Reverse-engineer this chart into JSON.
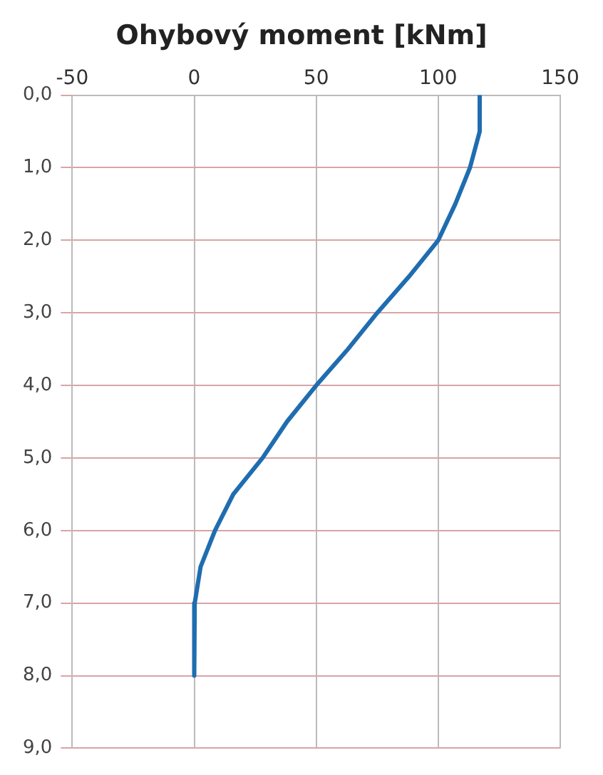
{
  "chart_data": {
    "type": "line",
    "title": "Ohybový moment [kNm]",
    "xlim": [
      -50,
      150
    ],
    "xticks": [
      -50,
      0,
      50,
      100,
      150
    ],
    "ylim": [
      9,
      0
    ],
    "yticks": [
      {
        "value": 0,
        "label": "0,0"
      },
      {
        "value": 1,
        "label": "1,0"
      },
      {
        "value": 2,
        "label": "2,0"
      },
      {
        "value": 3,
        "label": "3,0"
      },
      {
        "value": 4,
        "label": "4,0"
      },
      {
        "value": 5,
        "label": "5,0"
      },
      {
        "value": 6,
        "label": "6,0"
      },
      {
        "value": 7,
        "label": "7,0"
      },
      {
        "value": 8,
        "label": "8,0"
      },
      {
        "value": 9,
        "label": "9,0"
      }
    ],
    "grid": true,
    "legend": false,
    "marker": "none",
    "line_style": "solid",
    "series": [
      {
        "color": "#1f6db0",
        "x": [
          117,
          117,
          113,
          107,
          100,
          88,
          75,
          63,
          50,
          38,
          28,
          16,
          8.5,
          2.6,
          0.2,
          0
        ],
        "values": [
          0,
          0.5,
          1,
          1.5,
          2,
          2.5,
          3,
          3.5,
          4,
          4.5,
          5,
          5.5,
          6,
          6.5,
          7,
          8
        ]
      }
    ]
  }
}
